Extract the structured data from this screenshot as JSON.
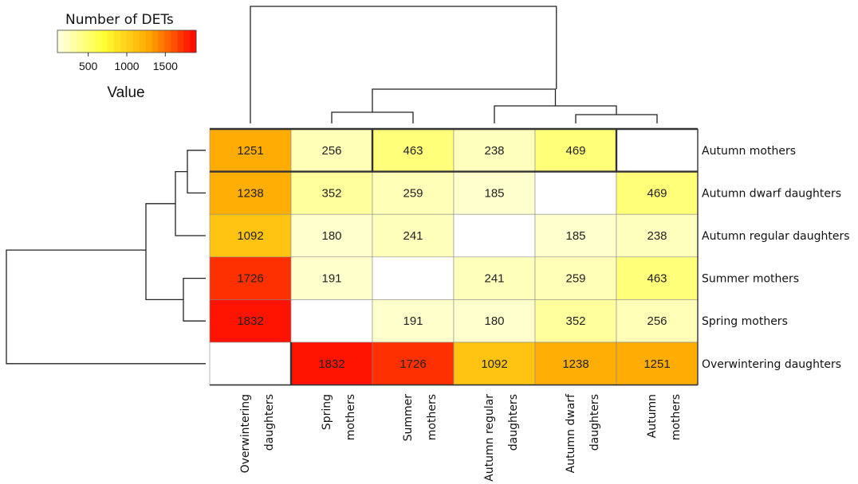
{
  "chart_data": {
    "type": "heatmap",
    "legend": {
      "title": "Number of DETs",
      "axis_label": "Value",
      "ticks": [
        500,
        1000,
        1500
      ],
      "range": [
        100,
        1900
      ],
      "colors": [
        "#ffffe6",
        "#ffff33",
        "#ffa500",
        "#ff0000"
      ],
      "placement": "top-left"
    },
    "rows": [
      "Autumn mothers",
      "Autumn dwarf daughters",
      "Autumn regular daughters",
      "Summer mothers",
      "Spring mothers",
      "Overwintering daughters"
    ],
    "columns": [
      [
        "Overwintering",
        "daughters"
      ],
      [
        "Spring",
        "mothers"
      ],
      [
        "Summer",
        "mothers"
      ],
      [
        "Autumn regular",
        "daughters"
      ],
      [
        "Autumn dwarf",
        "daughters"
      ],
      [
        "Autumn",
        "mothers"
      ]
    ],
    "values": [
      [
        1251,
        256,
        463,
        238,
        469,
        null
      ],
      [
        1238,
        352,
        259,
        185,
        null,
        469
      ],
      [
        1092,
        180,
        241,
        null,
        185,
        238
      ],
      [
        1726,
        191,
        null,
        241,
        259,
        463
      ],
      [
        1832,
        null,
        191,
        180,
        352,
        256
      ],
      [
        null,
        1832,
        1726,
        1092,
        1238,
        1251
      ]
    ]
  }
}
